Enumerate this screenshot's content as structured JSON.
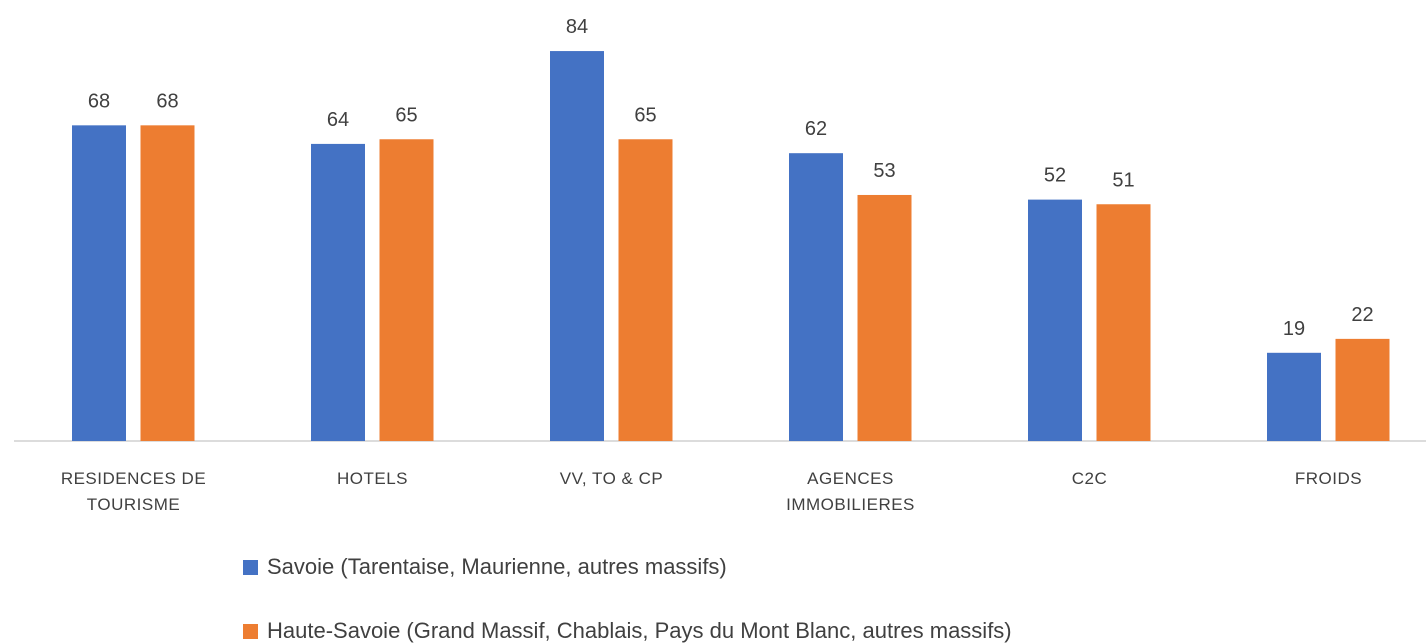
{
  "chart_data": {
    "type": "bar",
    "categories": [
      "RESIDENCES DE TOURISME",
      "HOTELS",
      "VV, TO & CP",
      "AGENCES IMMOBILIERES",
      "C2C",
      "FROIDS"
    ],
    "series": [
      {
        "name": "Savoie (Tarentaise, Maurienne, autres massifs)",
        "color": "#4472c4",
        "values": [
          68,
          64,
          84,
          62,
          52,
          19
        ]
      },
      {
        "name": "Haute-Savoie (Grand Massif, Chablais, Pays du Mont Blanc, autres massifs)",
        "color": "#ed7d31",
        "values": [
          68,
          65,
          65,
          53,
          51,
          22
        ]
      }
    ],
    "ylim": [
      0,
      95
    ]
  }
}
